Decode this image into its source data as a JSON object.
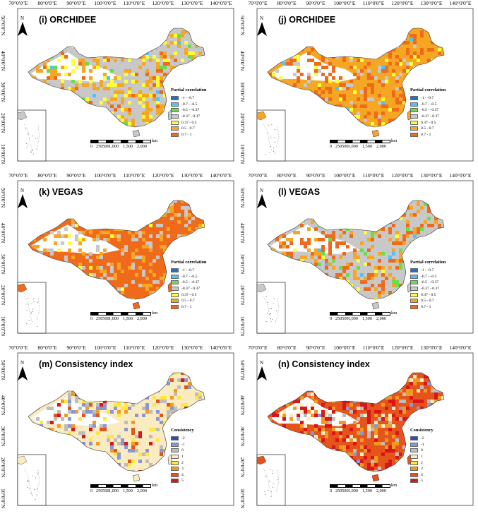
{
  "lon_labels": [
    "70°0'0\"E",
    "80°0'0\"E",
    "90°0'0\"E",
    "100°0'0\"E",
    "110°0'0\"E",
    "120°0'0\"E",
    "130°0'0\"E",
    "140°0'0\"E"
  ],
  "lat_labels": [
    "50°0'0\"N",
    "40°0'0\"N",
    "30°0'0\"N",
    "20°0'0\"N",
    "10°0'0\"N"
  ],
  "north_label": "N",
  "scale": {
    "ticks": [
      "0",
      "250500",
      "1,000",
      "1,500",
      "2,000"
    ],
    "unit": "km"
  },
  "legends": {
    "partial": {
      "title": "Partial correlation",
      "items": [
        {
          "label": "-1 - -0.7",
          "color": "#1f6fd6"
        },
        {
          "label": "-0.7 - -0.5",
          "color": "#4fc3f7"
        },
        {
          "label": "-0.5 - -0.37",
          "color": "#66e04a"
        },
        {
          "label": "-0.37 - 0.37",
          "color": "#c8c8c8"
        },
        {
          "label": "0.37 - 0.5",
          "color": "#ffff33"
        },
        {
          "label": "0.5 - 0.7",
          "color": "#f5a623"
        },
        {
          "label": "0.7 - 1",
          "color": "#ef6a1a"
        }
      ]
    },
    "consistency": {
      "title": "Consistency",
      "items": [
        {
          "label": "-2",
          "color": "#1f4fd6"
        },
        {
          "label": "-1",
          "color": "#8a97d6"
        },
        {
          "label": "0",
          "color": "#bdbdbd"
        },
        {
          "label": "1",
          "color": "#fbebc1"
        },
        {
          "label": "2",
          "color": "#ffe83a"
        },
        {
          "label": "3",
          "color": "#f29b21"
        },
        {
          "label": "4",
          "color": "#e5541b"
        },
        {
          "label": "5",
          "color": "#d9151a"
        }
      ]
    }
  },
  "panels": [
    {
      "id": "i",
      "title": "(i) ORCHIDEE",
      "legend": "partial",
      "base": "#c8c8c8",
      "patches": [
        [
          "#f5a623",
          0.3
        ],
        [
          "#ffff33",
          0.2
        ],
        [
          "#ef6a1a",
          0.1
        ],
        [
          "#66e04a",
          0.05
        ],
        [
          "#4fc3f7",
          0.02
        ]
      ]
    },
    {
      "id": "j",
      "title": "(j) ORCHIDEE",
      "legend": "partial",
      "base": "#f5a623",
      "patches": [
        [
          "#ef6a1a",
          0.35
        ],
        [
          "#ffff33",
          0.15
        ],
        [
          "#c8c8c8",
          0.15
        ],
        [
          "#4fc3f7",
          0.01
        ]
      ]
    },
    {
      "id": "k",
      "title": "(k) VEGAS",
      "legend": "partial",
      "base": "#ef6a1a",
      "patches": [
        [
          "#f5a623",
          0.3
        ],
        [
          "#c8c8c8",
          0.25
        ],
        [
          "#ffff33",
          0.05
        ]
      ]
    },
    {
      "id": "l",
      "title": "(l) VEGAS",
      "legend": "partial",
      "base": "#c8c8c8",
      "patches": [
        [
          "#ef6a1a",
          0.3
        ],
        [
          "#f5a623",
          0.2
        ],
        [
          "#66e04a",
          0.05
        ],
        [
          "#ffff33",
          0.05
        ],
        [
          "#4fc3f7",
          0.02
        ]
      ]
    },
    {
      "id": "m",
      "title": "(m) Consistency index",
      "legend": "consistency",
      "base": "#fbebc1",
      "patches": [
        [
          "#8a97d6",
          0.15
        ],
        [
          "#bdbdbd",
          0.15
        ],
        [
          "#ffe83a",
          0.1
        ],
        [
          "#f29b21",
          0.07
        ],
        [
          "#e5541b",
          0.05
        ],
        [
          "#d9151a",
          0.04
        ]
      ]
    },
    {
      "id": "n",
      "title": "(n) Consistency index",
      "legend": "consistency",
      "base": "#e5541b",
      "patches": [
        [
          "#d9151a",
          0.3
        ],
        [
          "#f29b21",
          0.2
        ],
        [
          "#fbebc1",
          0.12
        ],
        [
          "#bdbdbd",
          0.08
        ],
        [
          "#8a97d6",
          0.04
        ]
      ]
    }
  ]
}
